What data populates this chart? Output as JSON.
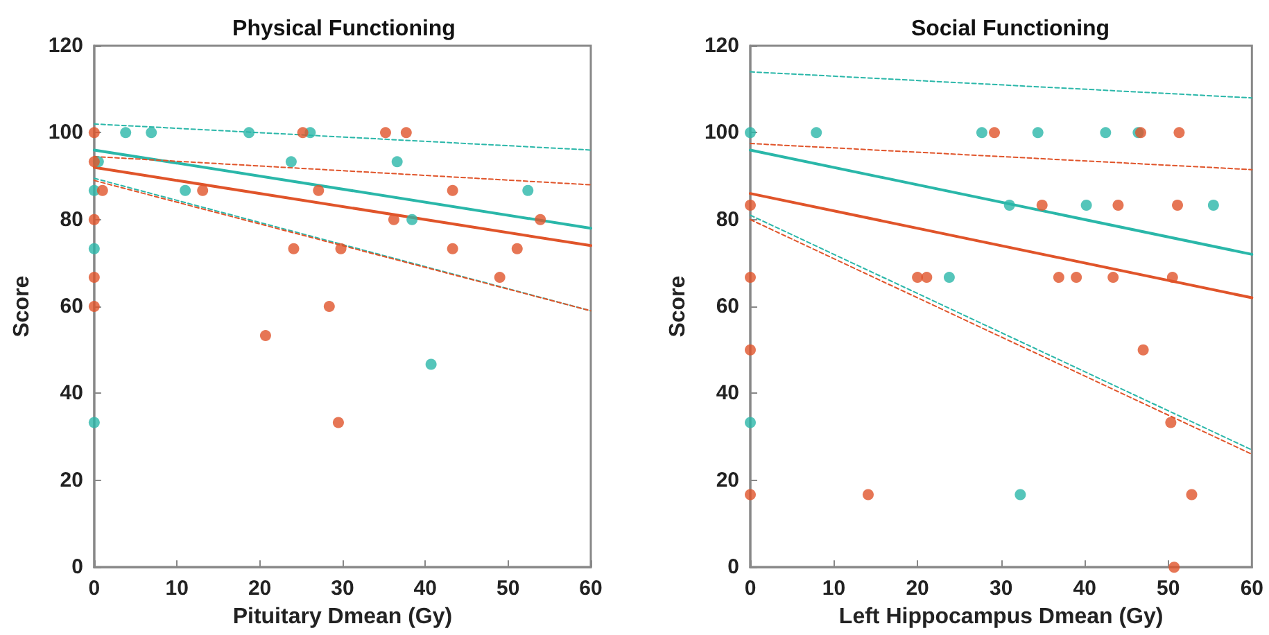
{
  "chart_data": [
    {
      "type": "scatter",
      "title": "Physical Functioning",
      "xlabel": "Pituitary Dmean (Gy)",
      "ylabel": "Score",
      "xlim": [
        0,
        60
      ],
      "xticks": [
        0,
        10,
        20,
        30,
        40,
        50,
        60
      ],
      "ylim": [
        0,
        120
      ],
      "yticks": [
        0,
        20,
        40,
        60,
        80,
        100,
        120
      ],
      "grid": false,
      "series": [
        {
          "marker": "circle",
          "color": "#2ab7a9",
          "x": [
            0,
            0,
            0,
            0.5,
            3.8,
            6.9,
            11,
            18.7,
            23.8,
            26.1,
            36.6,
            38.4,
            40.7,
            52.4
          ],
          "values": [
            86.7,
            73.3,
            33.3,
            93.3,
            100,
            100,
            86.7,
            100,
            93.3,
            100,
            93.3,
            80,
            46.7,
            86.7
          ]
        },
        {
          "marker": "circle",
          "color": "#e0542a",
          "x": [
            0,
            0,
            0,
            0,
            0,
            1,
            13.1,
            20.7,
            24.1,
            25.2,
            27.1,
            28.4,
            29.5,
            29.8,
            35.2,
            36.2,
            37.7,
            43.3,
            43.3,
            49,
            51.1,
            53.9
          ],
          "values": [
            100,
            93.3,
            80,
            66.7,
            60,
            86.7,
            86.7,
            53.3,
            73.3,
            100,
            86.7,
            60,
            33.3,
            73.3,
            100,
            80,
            100,
            86.7,
            73.3,
            66.7,
            73.3,
            80
          ]
        },
        {
          "type": "line",
          "color": "#2ab7a9",
          "line_style": "solid",
          "x": [
            0,
            60
          ],
          "values": [
            96,
            78
          ]
        },
        {
          "type": "line",
          "color": "#e0542a",
          "line_style": "solid",
          "x": [
            0,
            60
          ],
          "values": [
            92,
            74
          ]
        },
        {
          "type": "line",
          "color": "#2ab7a9",
          "line_style": "dashed",
          "x": [
            0,
            60
          ],
          "values": [
            102,
            96
          ]
        },
        {
          "type": "line",
          "color": "#e0542a",
          "line_style": "dashed",
          "x": [
            0,
            60
          ],
          "values": [
            94.5,
            88
          ]
        },
        {
          "type": "line",
          "color": "#2ab7a9",
          "line_style": "dashed",
          "x": [
            0,
            60
          ],
          "values": [
            89.5,
            59
          ]
        },
        {
          "type": "line",
          "color": "#e0542a",
          "line_style": "dashed",
          "x": [
            0,
            60
          ],
          "values": [
            89,
            59
          ]
        }
      ]
    },
    {
      "type": "scatter",
      "title": "Social Functioning",
      "xlabel": "Left Hippocampus Dmean (Gy)",
      "ylabel": "Score",
      "xlim": [
        0,
        60
      ],
      "xticks": [
        0,
        10,
        20,
        30,
        40,
        50,
        60
      ],
      "ylim": [
        0,
        120
      ],
      "yticks": [
        0,
        20,
        40,
        60,
        80,
        100,
        120
      ],
      "grid": false,
      "series": [
        {
          "marker": "circle",
          "color": "#2ab7a9",
          "x": [
            0,
            0,
            7.9,
            23.8,
            27.7,
            31,
            32.3,
            34.4,
            40.2,
            42.5,
            46.4,
            55.4
          ],
          "values": [
            100,
            33.3,
            100,
            66.7,
            100,
            83.3,
            16.7,
            100,
            83.3,
            100,
            100,
            83.3
          ]
        },
        {
          "marker": "circle",
          "color": "#e0542a",
          "x": [
            0,
            0,
            0,
            0,
            14.1,
            20,
            21.1,
            29.2,
            34.9,
            36.9,
            39,
            43.4,
            44,
            46.7,
            47,
            50.3,
            50.5,
            50.7,
            51.1,
            51.3,
            52.8
          ],
          "values": [
            83.3,
            66.7,
            50,
            16.7,
            16.7,
            66.7,
            66.7,
            100,
            83.3,
            66.7,
            66.7,
            66.7,
            83.3,
            100,
            50,
            33.3,
            66.7,
            0,
            83.3,
            100,
            16.7
          ]
        },
        {
          "type": "line",
          "color": "#2ab7a9",
          "line_style": "solid",
          "x": [
            0,
            60
          ],
          "values": [
            96,
            72
          ]
        },
        {
          "type": "line",
          "color": "#e0542a",
          "line_style": "solid",
          "x": [
            0,
            60
          ],
          "values": [
            86,
            62
          ]
        },
        {
          "type": "line",
          "color": "#2ab7a9",
          "line_style": "dashed",
          "x": [
            0,
            60
          ],
          "values": [
            114,
            108
          ]
        },
        {
          "type": "line",
          "color": "#e0542a",
          "line_style": "dashed",
          "x": [
            0,
            60
          ],
          "values": [
            97.5,
            91.5
          ]
        },
        {
          "type": "line",
          "color": "#2ab7a9",
          "line_style": "dashed",
          "x": [
            0,
            60
          ],
          "values": [
            81,
            27
          ]
        },
        {
          "type": "line",
          "color": "#e0542a",
          "line_style": "dashed",
          "x": [
            0,
            60
          ],
          "values": [
            80,
            26
          ]
        }
      ]
    }
  ]
}
